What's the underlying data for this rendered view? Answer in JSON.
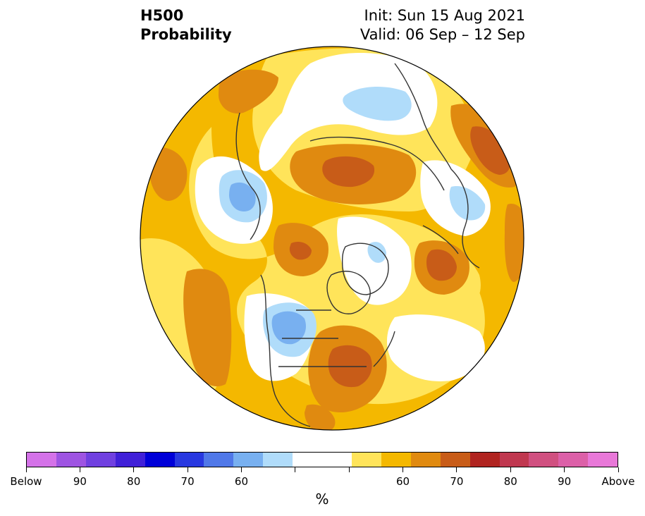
{
  "header": {
    "variable": "H500",
    "product": "Probability",
    "init": "Init: Sun 15 Aug 2021",
    "valid": "Valid: 06 Sep – 12 Sep"
  },
  "colorbar": {
    "unit": "%",
    "colors": [
      "#d472e8",
      "#9e54e2",
      "#7040e0",
      "#4020d8",
      "#0000d8",
      "#2838e0",
      "#5078e8",
      "#78b0f0",
      "#b0dcfa",
      "#ffffff",
      "#ffffff",
      "#ffe45a",
      "#f4b800",
      "#e08a10",
      "#c85c18",
      "#b02420",
      "#c03850",
      "#d05080",
      "#dc60a8",
      "#e878d8"
    ],
    "tick_labels": [
      "Below",
      "90",
      "80",
      "70",
      "60",
      "",
      "",
      "60",
      "70",
      "80",
      "90",
      "Above"
    ]
  },
  "map": {
    "projection": "north-polar-stereographic",
    "background_color": "#f4b800",
    "coastline_color": "#333333"
  }
}
